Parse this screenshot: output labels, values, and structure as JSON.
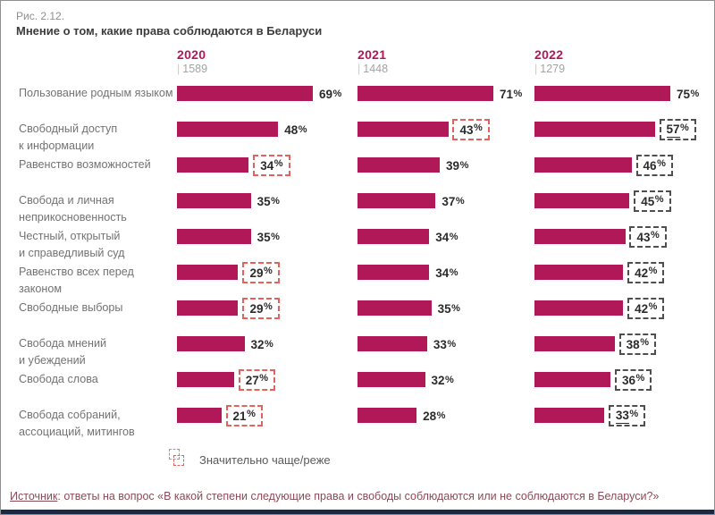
{
  "header": {
    "figure_number": "Рис. 2.12.",
    "title": "Мнение о том, какие права соблюдаются в Беларуси"
  },
  "legend": {
    "marker_label": "Значительно чаще/реже"
  },
  "source": {
    "label": "Источник",
    "text": ": ответы на вопрос «В какой степени следующие права и свободы соблюдаются или не соблюдаются в Беларуси?»"
  },
  "colors": {
    "bar": "#b01858",
    "year_label": "#b01857",
    "box_red": "#e2635e",
    "box_dark": "#4f4f4f",
    "footer_strip": "#1c2740"
  },
  "chart_data": {
    "type": "bar",
    "title": "Мнение о том, какие права соблюдаются в Беларуси",
    "categories": [
      "Пользование родным языком",
      "Свободный доступ\nк информации",
      "Равенство возможностей",
      "Свобода и личная\nнеприкосновенность",
      "Честный, открытый\nи справедливый суд",
      "Равенство всех перед\nзаконом",
      "Свободные выборы",
      "Свобода мнений\nи убеждений",
      "Свобода слова",
      "Свобода собраний,\nассоциаций, митингов"
    ],
    "series": [
      {
        "year": "2020",
        "n": "1589",
        "box_style": "red",
        "values": [
          69,
          48,
          34,
          35,
          35,
          29,
          29,
          32,
          27,
          21
        ],
        "boxed": [
          false,
          false,
          true,
          false,
          false,
          true,
          true,
          false,
          true,
          true
        ],
        "underline": [
          false,
          false,
          false,
          false,
          false,
          false,
          false,
          false,
          false,
          false
        ]
      },
      {
        "year": "2021",
        "n": "1448",
        "box_style": "red",
        "values": [
          71,
          43,
          39,
          37,
          34,
          34,
          35,
          33,
          32,
          28
        ],
        "boxed": [
          false,
          true,
          false,
          false,
          false,
          false,
          false,
          false,
          false,
          false
        ],
        "underline": [
          false,
          false,
          false,
          false,
          false,
          false,
          false,
          false,
          false,
          false
        ]
      },
      {
        "year": "2022",
        "n": "1279",
        "box_style": "dark",
        "values": [
          75,
          57,
          46,
          45,
          43,
          42,
          42,
          38,
          36,
          33
        ],
        "boxed": [
          false,
          true,
          true,
          true,
          true,
          true,
          true,
          true,
          true,
          true
        ],
        "underline": [
          false,
          true,
          false,
          false,
          false,
          false,
          false,
          false,
          false,
          true
        ]
      }
    ],
    "value_suffix": "%",
    "xlim": [
      0,
      100
    ],
    "legend_note": "Значительно чаще/реже"
  }
}
